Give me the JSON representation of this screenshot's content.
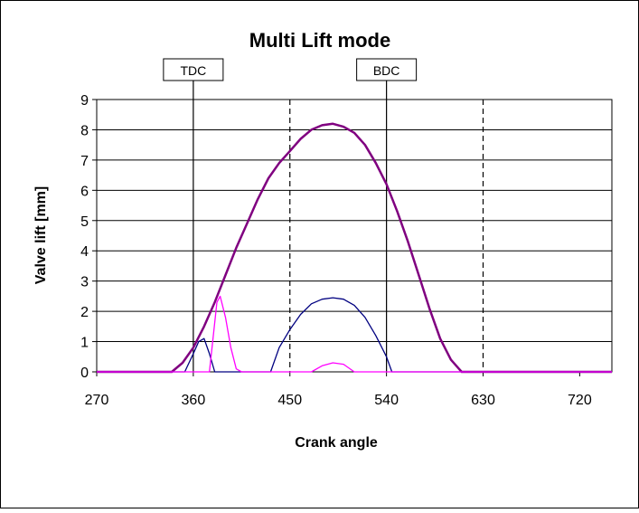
{
  "chart_data": {
    "type": "line",
    "title": "Multi Lift mode",
    "x_label": "Crank angle",
    "y_label": "Valve lift [mm]",
    "xlim": [
      270,
      750
    ],
    "ylim": [
      0,
      9
    ],
    "xticks": [
      270,
      360,
      450,
      540,
      630,
      720
    ],
    "yticks": [
      0,
      1,
      2,
      3,
      4,
      5,
      6,
      7,
      8,
      9
    ],
    "grid": true,
    "reference_lines": [
      {
        "value": 360,
        "label": "TDC",
        "dashed": false
      },
      {
        "value": 450,
        "dashed": true
      },
      {
        "value": 540,
        "label": "BDC",
        "dashed": false
      },
      {
        "value": 630,
        "dashed": true
      }
    ],
    "series": [
      {
        "color": "#800080",
        "width": 2.5,
        "x": [
          270,
          340,
          350,
          360,
          370,
          380,
          390,
          400,
          410,
          420,
          430,
          440,
          450,
          460,
          470,
          480,
          490,
          500,
          510,
          520,
          530,
          540,
          550,
          560,
          570,
          580,
          590,
          600,
          610,
          750
        ],
        "values": [
          0,
          0,
          0.3,
          0.8,
          1.5,
          2.3,
          3.2,
          4.1,
          4.9,
          5.7,
          6.4,
          6.9,
          7.3,
          7.7,
          8.0,
          8.15,
          8.2,
          8.1,
          7.9,
          7.5,
          6.9,
          6.2,
          5.3,
          4.3,
          3.2,
          2.1,
          1.1,
          0.4,
          0,
          0
        ]
      },
      {
        "color": "#000080",
        "width": 1.3,
        "x": [
          270,
          352,
          360,
          365,
          370,
          375,
          380,
          432,
          440,
          450,
          460,
          470,
          480,
          490,
          500,
          510,
          520,
          530,
          540,
          545,
          750
        ],
        "values": [
          0,
          0,
          0.6,
          1.0,
          1.1,
          0.6,
          0,
          0,
          0.8,
          1.4,
          1.9,
          2.25,
          2.4,
          2.45,
          2.4,
          2.2,
          1.8,
          1.2,
          0.5,
          0,
          0
        ]
      },
      {
        "color": "#ff00ff",
        "width": 1.3,
        "x": [
          270,
          375,
          382,
          385,
          390,
          395,
          400,
          405,
          470,
          480,
          490,
          500,
          510,
          750
        ],
        "values": [
          0,
          0,
          2.3,
          2.5,
          1.8,
          0.8,
          0.1,
          0,
          0,
          0.2,
          0.3,
          0.25,
          0,
          0
        ]
      }
    ]
  }
}
